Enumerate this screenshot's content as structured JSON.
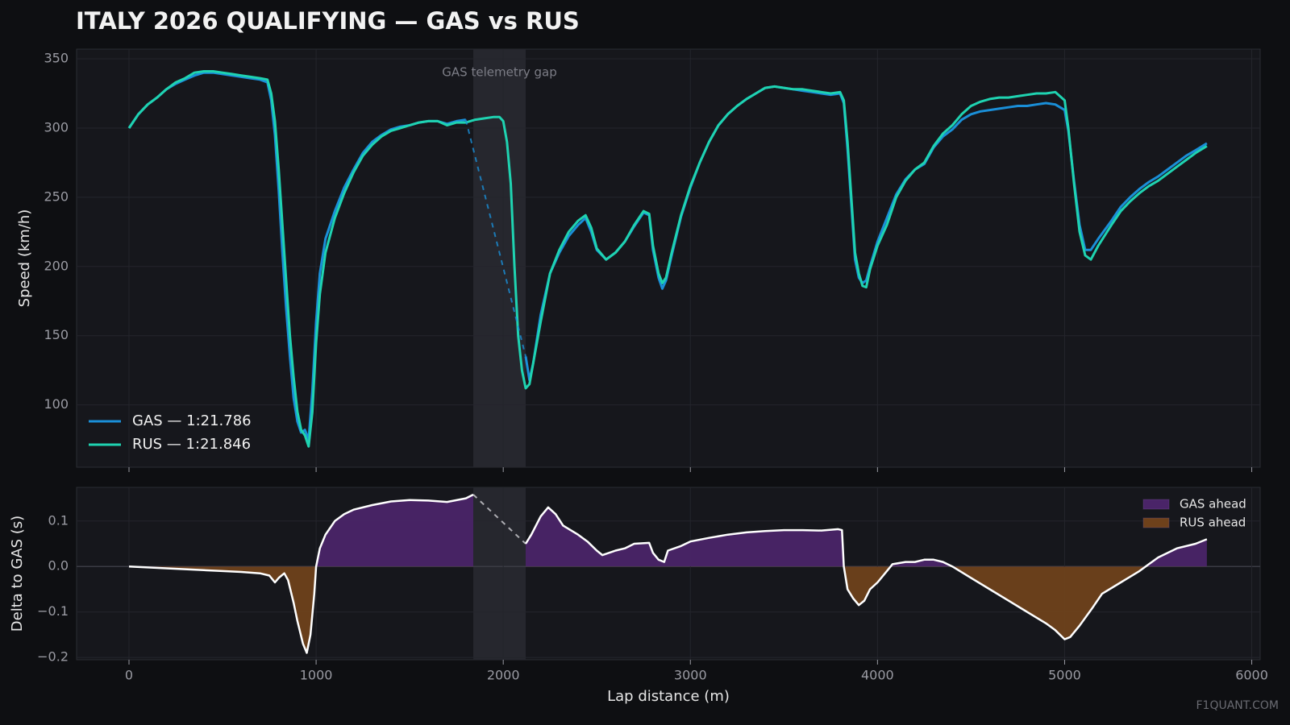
{
  "chart_data": [
    {
      "type": "line",
      "title": "ITALY 2026 QUALIFYING — GAS vs RUS",
      "ylabel": "Speed (km/h)",
      "ylim": [
        55,
        357
      ],
      "yticks": [
        100,
        150,
        200,
        250,
        300,
        350
      ],
      "grid": true,
      "legend": "lower left",
      "gap": {
        "label": "GAS telemetry gap",
        "start": 1840,
        "end": 2120
      },
      "x": [
        0,
        50,
        100,
        150,
        200,
        250,
        300,
        350,
        400,
        450,
        500,
        550,
        600,
        650,
        700,
        740,
        760,
        780,
        800,
        820,
        840,
        860,
        880,
        900,
        920,
        940,
        960,
        980,
        1000,
        1020,
        1050,
        1100,
        1150,
        1200,
        1250,
        1300,
        1350,
        1400,
        1450,
        1500,
        1550,
        1600,
        1650,
        1700,
        1750,
        1800,
        1850,
        1900,
        1950,
        1980,
        2000,
        2020,
        2040,
        2060,
        2080,
        2100,
        2120,
        2140,
        2160,
        2200,
        2250,
        2300,
        2350,
        2400,
        2440,
        2470,
        2500,
        2550,
        2600,
        2650,
        2700,
        2750,
        2780,
        2800,
        2830,
        2850,
        2870,
        2900,
        2950,
        3000,
        3050,
        3100,
        3150,
        3200,
        3250,
        3300,
        3350,
        3400,
        3450,
        3500,
        3550,
        3600,
        3650,
        3700,
        3750,
        3800,
        3820,
        3840,
        3860,
        3880,
        3900,
        3920,
        3940,
        3960,
        4000,
        4050,
        4100,
        4150,
        4200,
        4250,
        4300,
        4350,
        4400,
        4450,
        4500,
        4550,
        4600,
        4650,
        4700,
        4750,
        4800,
        4850,
        4900,
        4950,
        5000,
        5020,
        5050,
        5080,
        5110,
        5140,
        5180,
        5250,
        5300,
        5350,
        5400,
        5450,
        5500,
        5550,
        5600,
        5650,
        5700,
        5760
      ],
      "series": [
        {
          "name": "GAS — 1:21.786",
          "color": "#1a8fd8",
          "values": [
            300,
            310,
            317,
            322,
            328,
            332,
            335,
            338,
            340,
            340,
            339,
            338,
            337,
            336,
            335,
            333,
            320,
            295,
            255,
            210,
            170,
            135,
            105,
            88,
            80,
            82,
            75,
            110,
            160,
            195,
            220,
            240,
            257,
            270,
            282,
            290,
            295,
            299,
            301,
            302,
            304,
            305,
            305,
            303,
            305,
            306,
            null,
            null,
            null,
            null,
            null,
            null,
            null,
            null,
            null,
            null,
            135,
            118,
            130,
            165,
            195,
            210,
            222,
            230,
            235,
            225,
            212,
            205,
            210,
            218,
            229,
            239,
            237,
            212,
            192,
            184,
            190,
            208,
            236,
            257,
            275,
            290,
            302,
            310,
            316,
            321,
            325,
            329,
            330,
            329,
            328,
            327,
            326,
            325,
            324,
            325,
            318,
            285,
            245,
            205,
            192,
            188,
            190,
            200,
            218,
            235,
            252,
            263,
            270,
            274,
            286,
            294,
            299,
            306,
            310,
            312,
            313,
            314,
            315,
            316,
            316,
            317,
            318,
            317,
            313,
            298,
            262,
            230,
            212,
            212,
            220,
            233,
            243,
            250,
            256,
            261,
            265,
            270,
            275,
            280,
            284,
            289
          ]
        },
        {
          "name": "RUS — 1:21.846",
          "color": "#1fd3b1",
          "values": [
            300,
            310,
            317,
            322,
            328,
            333,
            336,
            340,
            341,
            341,
            340,
            339,
            338,
            337,
            336,
            335,
            325,
            305,
            270,
            230,
            190,
            150,
            120,
            95,
            82,
            78,
            70,
            95,
            145,
            180,
            210,
            235,
            253,
            268,
            280,
            288,
            294,
            298,
            300,
            302,
            304,
            305,
            305,
            302,
            304,
            304,
            306,
            307,
            308,
            308,
            305,
            290,
            260,
            200,
            150,
            125,
            112,
            115,
            130,
            160,
            195,
            212,
            225,
            233,
            237,
            228,
            213,
            205,
            210,
            218,
            230,
            240,
            238,
            215,
            195,
            188,
            192,
            210,
            237,
            258,
            275,
            290,
            302,
            310,
            316,
            321,
            325,
            329,
            330,
            329,
            328,
            328,
            327,
            326,
            325,
            326,
            320,
            290,
            250,
            210,
            195,
            186,
            185,
            198,
            215,
            230,
            250,
            262,
            270,
            275,
            287,
            296,
            302,
            310,
            316,
            319,
            321,
            322,
            322,
            323,
            324,
            325,
            325,
            326,
            320,
            300,
            260,
            225,
            208,
            205,
            215,
            230,
            240,
            247,
            253,
            258,
            262,
            267,
            272,
            277,
            282,
            287
          ]
        }
      ]
    },
    {
      "type": "area",
      "xlabel": "Lap distance (m)",
      "ylabel": "Delta to GAS (s)",
      "color": "#ffffff",
      "xlim": [
        -280,
        6045
      ],
      "xticks": [
        0,
        1000,
        2000,
        3000,
        4000,
        5000,
        6000
      ],
      "ylim": [
        -0.205,
        0.174
      ],
      "yticks": [
        {
          "value": -0.2,
          "label": "−0.2"
        },
        {
          "value": -0.1,
          "label": "−0.1"
        },
        {
          "value": 0,
          "label": "0.0"
        },
        0.1
      ],
      "grid": true,
      "legend": "upper right",
      "watermark": "F1QUANT.COM",
      "fills": [
        {
          "name": "GAS ahead",
          "color": "#4a2468"
        },
        {
          "name": "RUS ahead",
          "color": "#6e411b"
        }
      ],
      "x": [
        0,
        100,
        200,
        300,
        400,
        500,
        600,
        700,
        750,
        780,
        800,
        830,
        850,
        880,
        900,
        930,
        950,
        970,
        990,
        1000,
        1020,
        1050,
        1100,
        1150,
        1200,
        1300,
        1400,
        1500,
        1600,
        1700,
        1800,
        1840,
        1980,
        2120,
        2150,
        2200,
        2240,
        2280,
        2320,
        2400,
        2450,
        2500,
        2530,
        2600,
        2650,
        2700,
        2780,
        2800,
        2830,
        2860,
        2880,
        2950,
        3000,
        3100,
        3200,
        3300,
        3400,
        3500,
        3600,
        3700,
        3790,
        3810,
        3820,
        3840,
        3870,
        3900,
        3930,
        3960,
        4000,
        4050,
        4080,
        4150,
        4200,
        4250,
        4300,
        4350,
        4400,
        4500,
        4600,
        4700,
        4800,
        4900,
        4950,
        5000,
        5030,
        5080,
        5150,
        5200,
        5300,
        5400,
        5450,
        5500,
        5600,
        5700,
        5760
      ],
      "values": [
        0,
        -0.002,
        -0.004,
        -0.006,
        -0.008,
        -0.01,
        -0.012,
        -0.015,
        -0.02,
        -0.035,
        -0.025,
        -0.015,
        -0.03,
        -0.08,
        -0.12,
        -0.17,
        -0.19,
        -0.15,
        -0.06,
        0,
        0.04,
        0.07,
        0.1,
        0.115,
        0.125,
        0.135,
        0.143,
        0.146,
        0.145,
        0.142,
        0.15,
        0.158,
        null,
        0.05,
        0.07,
        0.11,
        0.13,
        0.115,
        0.09,
        0.07,
        0.055,
        0.035,
        0.025,
        0.035,
        0.04,
        0.05,
        0.052,
        0.03,
        0.015,
        0.01,
        0.035,
        0.045,
        0.055,
        0.063,
        0.07,
        0.075,
        0.078,
        0.08,
        0.08,
        0.079,
        0.082,
        0.08,
        0,
        -0.05,
        -0.07,
        -0.085,
        -0.075,
        -0.05,
        -0.035,
        -0.01,
        0.005,
        0.01,
        0.01,
        0.015,
        0.015,
        0.01,
        0,
        -0.025,
        -0.05,
        -0.075,
        -0.1,
        -0.125,
        -0.14,
        -0.16,
        -0.155,
        -0.13,
        -0.09,
        -0.06,
        -0.035,
        -0.01,
        0.005,
        0.02,
        0.04,
        0.05,
        0.06
      ]
    }
  ]
}
